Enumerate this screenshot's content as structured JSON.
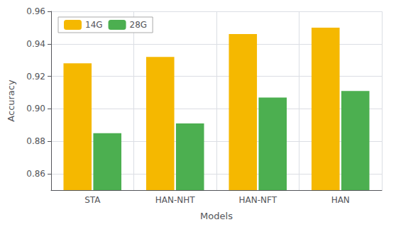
{
  "chart_data": {
    "type": "bar",
    "categories": [
      "STA",
      "HAN-NHT",
      "HAN-NFT",
      "HAN"
    ],
    "series": [
      {
        "name": "14G",
        "color": "#F5B800",
        "values": [
          0.928,
          0.932,
          0.946,
          0.95
        ]
      },
      {
        "name": "28G",
        "color": "#4CAF50",
        "values": [
          0.885,
          0.891,
          0.907,
          0.911
        ]
      }
    ],
    "xlabel": "Models",
    "ylabel": "Accuracy",
    "ylim": [
      0.85,
      0.96
    ],
    "yticks": [
      0.86,
      0.88,
      {
        "value": 0.9,
        "label": "0.90"
      },
      0.92,
      0.94,
      0.96
    ],
    "grid": true,
    "legend": "upper left"
  }
}
